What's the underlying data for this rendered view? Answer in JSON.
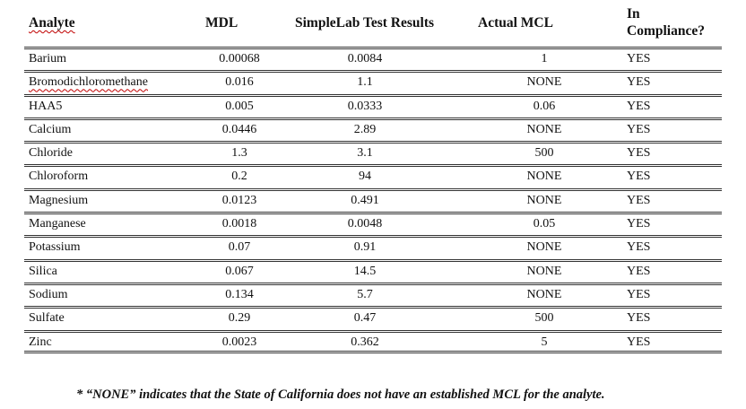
{
  "table": {
    "headers": {
      "analyte": "Analyte",
      "mdl": "MDL",
      "results": "SimpleLab Test Results",
      "mcl": "Actual MCL",
      "compliance_line1": "In",
      "compliance_line2": "Compliance?"
    },
    "rows": [
      {
        "analyte": "Barium",
        "mdl": "0.00068",
        "result": "0.0084",
        "mcl": "1",
        "compliance": "YES"
      },
      {
        "analyte": "Bromodichloromethane",
        "mdl": "0.016",
        "result": "1.1",
        "mcl": "NONE",
        "compliance": "YES"
      },
      {
        "analyte": "HAA5",
        "mdl": "0.005",
        "result": "0.0333",
        "mcl": "0.06",
        "compliance": "YES"
      },
      {
        "analyte": "Calcium",
        "mdl": "0.0446",
        "result": "2.89",
        "mcl": "NONE",
        "compliance": "YES"
      },
      {
        "analyte": "Chloride",
        "mdl": "1.3",
        "result": "3.1",
        "mcl": "500",
        "compliance": "YES"
      },
      {
        "analyte": "Chloroform",
        "mdl": "0.2",
        "result": "94",
        "mcl": "NONE",
        "compliance": "YES"
      },
      {
        "analyte": "Magnesium",
        "mdl": "0.0123",
        "result": "0.491",
        "mcl": "NONE",
        "compliance": "YES"
      },
      {
        "analyte": "Manganese",
        "mdl": "0.0018",
        "result": "0.0048",
        "mcl": "0.05",
        "compliance": "YES"
      },
      {
        "analyte": "Potassium",
        "mdl": "0.07",
        "result": "0.91",
        "mcl": "NONE",
        "compliance": "YES"
      },
      {
        "analyte": "Silica",
        "mdl": "0.067",
        "result": "14.5",
        "mcl": "NONE",
        "compliance": "YES"
      },
      {
        "analyte": "Sodium",
        "mdl": "0.134",
        "result": "5.7",
        "mcl": "NONE",
        "compliance": "YES"
      },
      {
        "analyte": "Sulfate",
        "mdl": "0.29",
        "result": "0.47",
        "mcl": "500",
        "compliance": "YES"
      },
      {
        "analyte": "Zinc",
        "mdl": "0.0023",
        "result": "0.362",
        "mcl": "5",
        "compliance": "YES"
      }
    ]
  },
  "footnote": "* “NONE” indicates that the State of California does not have an established MCL for the analyte."
}
